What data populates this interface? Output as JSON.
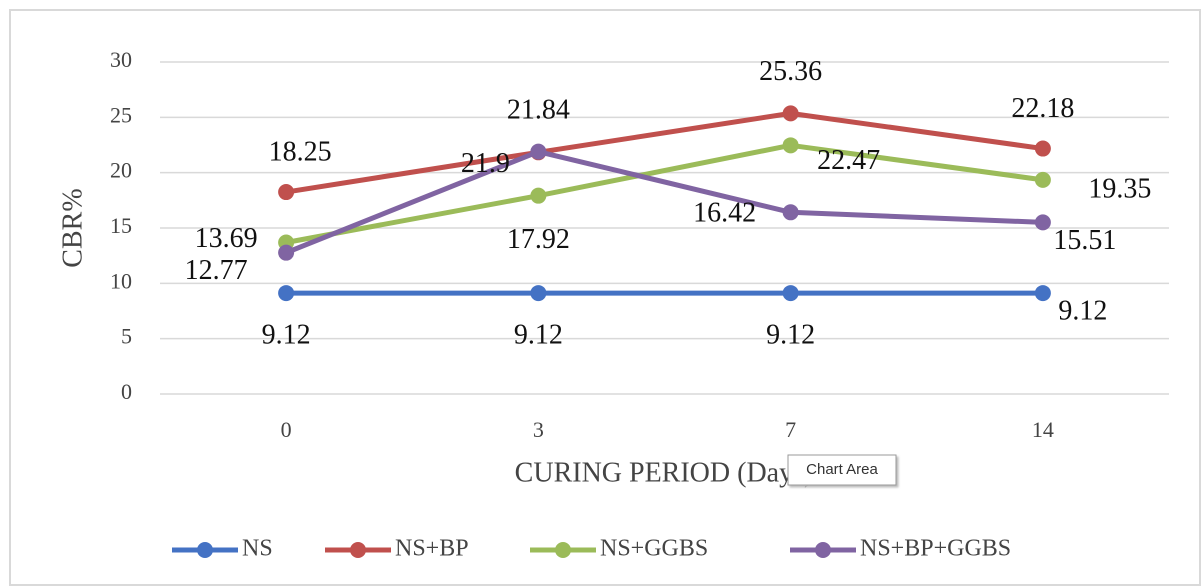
{
  "chart_data": {
    "type": "line",
    "xlabel": "CURING PERIOD (Days)",
    "ylabel": "CBR%",
    "tooltip": "Chart Area",
    "categories": [
      "0",
      "3",
      "7",
      "14"
    ],
    "series": [
      {
        "name": "NS",
        "color": "#4472c4",
        "values": [
          9.12,
          9.12,
          9.12,
          9.12
        ]
      },
      {
        "name": "NS+BP",
        "color": "#c0504d",
        "values": [
          18.25,
          21.84,
          25.36,
          22.18
        ]
      },
      {
        "name": "NS+GGBS",
        "color": "#9bbb59",
        "values": [
          13.69,
          17.92,
          22.47,
          19.35
        ]
      },
      {
        "name": "NS+BP+GGBS",
        "color": "#8064a2",
        "values": [
          12.77,
          21.9,
          16.42,
          15.51
        ]
      }
    ],
    "ylim": [
      0,
      30
    ],
    "yticks": [
      0,
      5,
      10,
      15,
      20,
      25,
      30
    ],
    "grid": true,
    "legend": "bottom"
  }
}
